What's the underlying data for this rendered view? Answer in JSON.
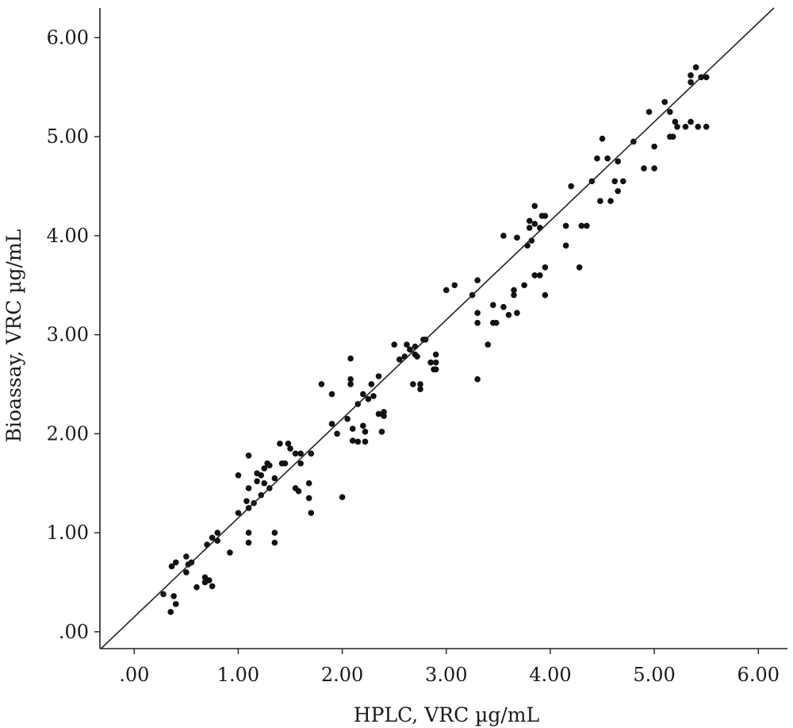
{
  "chart_data": {
    "type": "scatter",
    "title": "",
    "xlabel": "HPLC, VRC µg/mL",
    "ylabel": "Bioassay, VRC µg/mL",
    "xlim": [
      -0.33,
      6.28
    ],
    "ylim": [
      -0.17,
      6.3
    ],
    "x_ticks": [
      0,
      1,
      2,
      3,
      4,
      5,
      6
    ],
    "y_ticks": [
      0,
      1,
      2,
      3,
      4,
      5,
      6
    ],
    "x_tick_labels": [
      ".00",
      "1.00",
      "2.00",
      "3.00",
      "4.00",
      "5.00",
      "6.00"
    ],
    "y_tick_labels": [
      ".00",
      "1.00",
      "2.00",
      "3.00",
      "4.00",
      "5.00",
      "6.00"
    ],
    "grid": false,
    "legend": "none",
    "fit_line": {
      "slope": 1.0,
      "intercept": 0.15
    },
    "points": [
      [
        0.28,
        0.38
      ],
      [
        0.35,
        0.2
      ],
      [
        0.38,
        0.36
      ],
      [
        0.4,
        0.28
      ],
      [
        0.36,
        0.66
      ],
      [
        0.4,
        0.7
      ],
      [
        0.5,
        0.6
      ],
      [
        0.5,
        0.76
      ],
      [
        0.52,
        0.68
      ],
      [
        0.55,
        0.7
      ],
      [
        0.6,
        0.45
      ],
      [
        0.68,
        0.5
      ],
      [
        0.68,
        0.55
      ],
      [
        0.72,
        0.52
      ],
      [
        0.75,
        0.46
      ],
      [
        0.7,
        0.88
      ],
      [
        0.75,
        0.95
      ],
      [
        0.8,
        1.0
      ],
      [
        0.8,
        0.92
      ],
      [
        0.92,
        0.8
      ],
      [
        1.0,
        1.58
      ],
      [
        1.0,
        1.2
      ],
      [
        1.08,
        1.32
      ],
      [
        1.1,
        1.78
      ],
      [
        1.1,
        1.45
      ],
      [
        1.1,
        1.25
      ],
      [
        1.1,
        1.0
      ],
      [
        1.1,
        0.9
      ],
      [
        1.15,
        1.3
      ],
      [
        1.18,
        1.52
      ],
      [
        1.18,
        1.6
      ],
      [
        1.22,
        1.58
      ],
      [
        1.22,
        1.38
      ],
      [
        1.25,
        1.65
      ],
      [
        1.25,
        1.5
      ],
      [
        1.28,
        1.7
      ],
      [
        1.3,
        1.68
      ],
      [
        1.3,
        1.45
      ],
      [
        1.35,
        1.55
      ],
      [
        1.35,
        1.0
      ],
      [
        1.35,
        0.9
      ],
      [
        1.4,
        1.9
      ],
      [
        1.42,
        1.7
      ],
      [
        1.45,
        1.7
      ],
      [
        1.48,
        1.9
      ],
      [
        1.5,
        1.85
      ],
      [
        1.55,
        1.45
      ],
      [
        1.55,
        1.8
      ],
      [
        1.58,
        1.42
      ],
      [
        1.6,
        1.8
      ],
      [
        1.6,
        1.7
      ],
      [
        1.68,
        1.35
      ],
      [
        1.68,
        1.5
      ],
      [
        1.7,
        1.2
      ],
      [
        1.7,
        1.8
      ],
      [
        1.8,
        2.5
      ],
      [
        1.9,
        2.1
      ],
      [
        1.9,
        2.4
      ],
      [
        1.95,
        2.0
      ],
      [
        2.0,
        1.36
      ],
      [
        2.05,
        2.15
      ],
      [
        2.08,
        2.76
      ],
      [
        2.08,
        2.55
      ],
      [
        2.08,
        2.5
      ],
      [
        2.1,
        2.05
      ],
      [
        2.1,
        1.93
      ],
      [
        2.15,
        2.3
      ],
      [
        2.15,
        1.92
      ],
      [
        2.2,
        2.4
      ],
      [
        2.2,
        2.08
      ],
      [
        2.22,
        2.02
      ],
      [
        2.22,
        1.92
      ],
      [
        2.25,
        2.35
      ],
      [
        2.28,
        2.5
      ],
      [
        2.3,
        2.38
      ],
      [
        2.35,
        2.58
      ],
      [
        2.35,
        2.2
      ],
      [
        2.38,
        2.02
      ],
      [
        2.4,
        2.22
      ],
      [
        2.4,
        2.18
      ],
      [
        2.5,
        2.9
      ],
      [
        2.55,
        2.75
      ],
      [
        2.6,
        2.78
      ],
      [
        2.62,
        2.9
      ],
      [
        2.65,
        2.85
      ],
      [
        2.68,
        2.5
      ],
      [
        2.7,
        2.88
      ],
      [
        2.7,
        2.8
      ],
      [
        2.72,
        2.78
      ],
      [
        2.75,
        2.5
      ],
      [
        2.75,
        2.45
      ],
      [
        2.78,
        2.95
      ],
      [
        2.8,
        2.95
      ],
      [
        2.85,
        2.72
      ],
      [
        2.88,
        2.65
      ],
      [
        2.9,
        2.8
      ],
      [
        2.9,
        2.72
      ],
      [
        2.9,
        2.65
      ],
      [
        3.0,
        3.45
      ],
      [
        3.08,
        3.5
      ],
      [
        3.25,
        3.4
      ],
      [
        3.3,
        3.55
      ],
      [
        3.3,
        3.22
      ],
      [
        3.3,
        3.12
      ],
      [
        3.3,
        2.55
      ],
      [
        3.4,
        2.9
      ],
      [
        3.45,
        3.3
      ],
      [
        3.45,
        3.12
      ],
      [
        3.48,
        3.12
      ],
      [
        3.55,
        3.28
      ],
      [
        3.55,
        4.0
      ],
      [
        3.6,
        3.2
      ],
      [
        3.65,
        3.4
      ],
      [
        3.65,
        3.45
      ],
      [
        3.68,
        3.22
      ],
      [
        3.68,
        3.98
      ],
      [
        3.75,
        3.5
      ],
      [
        3.78,
        3.9
      ],
      [
        3.8,
        4.15
      ],
      [
        3.8,
        4.08
      ],
      [
        3.82,
        3.95
      ],
      [
        3.85,
        4.3
      ],
      [
        3.85,
        4.12
      ],
      [
        3.85,
        3.6
      ],
      [
        3.9,
        4.08
      ],
      [
        3.9,
        3.6
      ],
      [
        3.92,
        4.2
      ],
      [
        3.95,
        4.2
      ],
      [
        3.95,
        3.68
      ],
      [
        3.95,
        3.4
      ],
      [
        4.15,
        4.1
      ],
      [
        4.15,
        3.9
      ],
      [
        4.2,
        4.5
      ],
      [
        4.28,
        3.68
      ],
      [
        4.3,
        4.1
      ],
      [
        4.35,
        4.1
      ],
      [
        4.4,
        4.55
      ],
      [
        4.45,
        4.78
      ],
      [
        4.48,
        4.35
      ],
      [
        4.5,
        4.98
      ],
      [
        4.55,
        4.78
      ],
      [
        4.58,
        4.35
      ],
      [
        4.62,
        4.55
      ],
      [
        4.65,
        4.75
      ],
      [
        4.65,
        4.45
      ],
      [
        4.7,
        4.55
      ],
      [
        4.8,
        4.95
      ],
      [
        4.9,
        4.68
      ],
      [
        4.95,
        5.25
      ],
      [
        5.0,
        4.9
      ],
      [
        5.0,
        4.68
      ],
      [
        5.1,
        5.35
      ],
      [
        5.15,
        5.25
      ],
      [
        5.15,
        5.0
      ],
      [
        5.18,
        5.0
      ],
      [
        5.2,
        5.15
      ],
      [
        5.22,
        5.1
      ],
      [
        5.3,
        5.1
      ],
      [
        5.35,
        5.62
      ],
      [
        5.35,
        5.55
      ],
      [
        5.35,
        5.15
      ],
      [
        5.4,
        5.7
      ],
      [
        5.42,
        5.1
      ],
      [
        5.45,
        5.6
      ],
      [
        5.5,
        5.6
      ],
      [
        5.5,
        5.1
      ]
    ]
  }
}
